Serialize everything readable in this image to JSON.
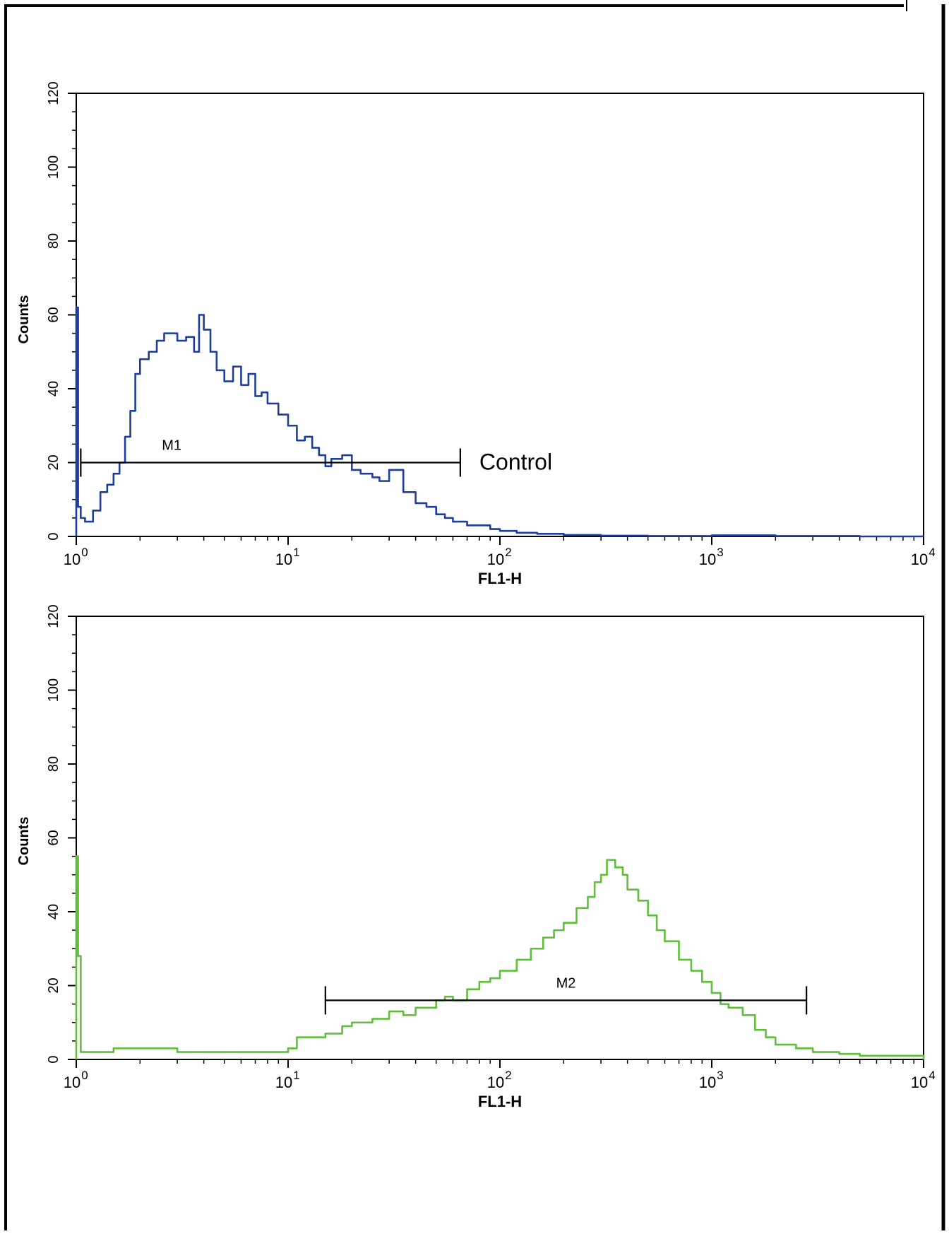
{
  "chart_data": [
    {
      "type": "line",
      "xlabel": "FL1-H",
      "ylabel": "Counts",
      "xscale": "log",
      "xlim": [
        1,
        10000
      ],
      "ylim": [
        0,
        120
      ],
      "yticks": [
        0,
        20,
        40,
        60,
        80,
        100,
        120
      ],
      "xticks": [
        {
          "value": 1,
          "base": "10",
          "exp": "0"
        },
        {
          "value": 10,
          "base": "10",
          "exp": "1"
        },
        {
          "value": 100,
          "base": "10",
          "exp": "2"
        },
        {
          "value": 1000,
          "base": "10",
          "exp": "3"
        },
        {
          "value": 10000,
          "base": "10",
          "exp": "4"
        }
      ],
      "series_color": "#1f3d9e",
      "series": [
        {
          "x": [
            1,
            1.02,
            1.05,
            1.1,
            1.2,
            1.3,
            1.4,
            1.5,
            1.6,
            1.7,
            1.8,
            1.9,
            2.0,
            2.2,
            2.4,
            2.6,
            2.8,
            3.0,
            3.3,
            3.6,
            3.8,
            4.0,
            4.3,
            4.6,
            5.0,
            5.5,
            6.0,
            6.5,
            7.0,
            7.5,
            8.0,
            9.0,
            10,
            11,
            12,
            13,
            14,
            15,
            16,
            18,
            20,
            22,
            25,
            27,
            30,
            35,
            40,
            45,
            50,
            55,
            60,
            70,
            80,
            90,
            100,
            120,
            150,
            200,
            300,
            500,
            1000,
            2000,
            5000,
            10000
          ],
          "y": [
            62,
            8,
            5,
            4,
            7,
            12,
            14,
            17,
            20,
            27,
            34,
            44,
            48,
            50,
            53,
            55,
            55,
            53,
            54,
            50,
            60,
            56,
            50,
            45,
            42,
            46,
            41,
            44,
            38,
            39,
            36,
            33,
            30,
            26,
            27,
            24,
            22,
            19,
            21,
            22,
            18,
            17,
            16,
            15,
            18,
            12,
            9,
            8,
            6,
            5,
            4,
            3,
            3,
            2,
            1.5,
            1,
            0.7,
            0.4,
            0.2,
            0.1,
            0.3,
            0.1,
            0,
            0
          ]
        }
      ],
      "markers": [
        {
          "label": "M1",
          "x_start": 1.05,
          "x_end": 65,
          "y": 20
        }
      ],
      "annotations": [
        {
          "text": "Control",
          "x": 80,
          "y": 20
        }
      ]
    },
    {
      "type": "line",
      "xlabel": "FL1-H",
      "ylabel": "Counts",
      "xscale": "log",
      "xlim": [
        1,
        10000
      ],
      "ylim": [
        0,
        120
      ],
      "yticks": [
        0,
        20,
        40,
        60,
        80,
        100,
        120
      ],
      "xticks": [
        {
          "value": 1,
          "base": "10",
          "exp": "0"
        },
        {
          "value": 10,
          "base": "10",
          "exp": "1"
        },
        {
          "value": 100,
          "base": "10",
          "exp": "2"
        },
        {
          "value": 1000,
          "base": "10",
          "exp": "3"
        },
        {
          "value": 10000,
          "base": "10",
          "exp": "4"
        }
      ],
      "series_color": "#5fbf3a",
      "series": [
        {
          "x": [
            1,
            1.02,
            1.05,
            1.2,
            1.5,
            2,
            3,
            4,
            5,
            7,
            9,
            10,
            11,
            13,
            15,
            18,
            20,
            25,
            30,
            35,
            40,
            50,
            55,
            60,
            70,
            80,
            90,
            100,
            120,
            140,
            160,
            180,
            200,
            230,
            260,
            280,
            300,
            320,
            350,
            380,
            400,
            450,
            500,
            550,
            600,
            700,
            800,
            900,
            1000,
            1100,
            1200,
            1400,
            1600,
            1800,
            2000,
            2500,
            3000,
            4000,
            5000,
            7000,
            10000
          ],
          "y": [
            55,
            28,
            2,
            2,
            3,
            3,
            2,
            2,
            2,
            2,
            2,
            3,
            6,
            6,
            7,
            9,
            10,
            11,
            13,
            12,
            14,
            16,
            17,
            16,
            19,
            21,
            22,
            24,
            27,
            30,
            33,
            35,
            37,
            41,
            44,
            48,
            50,
            54,
            52,
            50,
            46,
            43,
            39,
            35,
            32,
            27,
            24,
            21,
            18,
            15,
            14,
            12,
            8,
            6,
            4,
            3,
            2,
            1.5,
            1,
            1,
            0
          ]
        }
      ],
      "markers": [
        {
          "label": "M2",
          "x_start": 15,
          "x_end": 2800,
          "y": 16
        }
      ],
      "annotations": []
    }
  ]
}
